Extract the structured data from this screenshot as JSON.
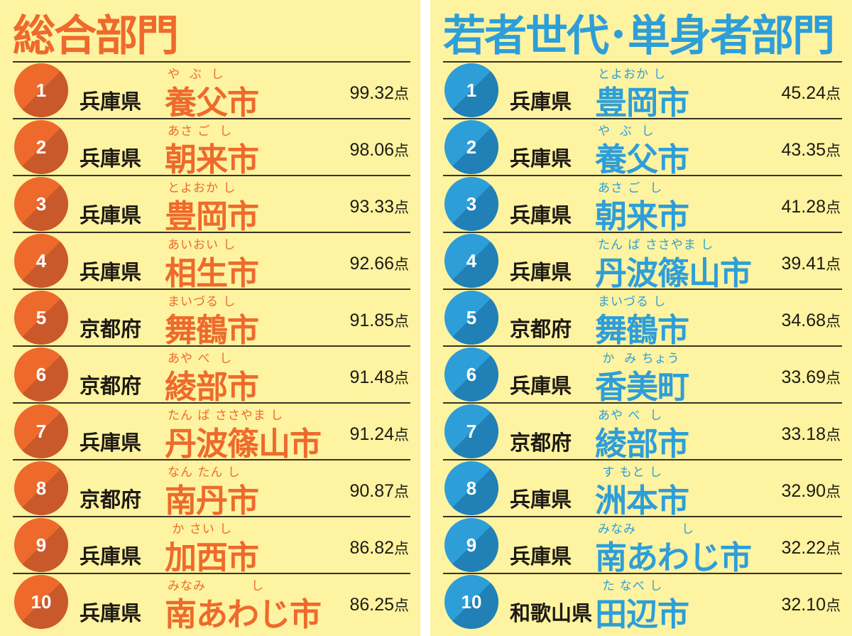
{
  "colors": {
    "background": "#fdf3a0",
    "overall_accent": "#ee6a2c",
    "overall_shade": "#c9592a",
    "young_accent": "#2e9ed8",
    "young_shade": "#2180b5"
  },
  "unit": "点",
  "panels": [
    {
      "id": "overall",
      "title": "総合部門",
      "rows": [
        {
          "rank": "1",
          "prefecture": "兵庫県",
          "reading": "や  ぶ  し",
          "city": "養父市",
          "score": "99.32"
        },
        {
          "rank": "2",
          "prefecture": "兵庫県",
          "reading": "あさ ご  し",
          "city": "朝来市",
          "score": "98.06"
        },
        {
          "rank": "3",
          "prefecture": "兵庫県",
          "reading": "とよおか し",
          "city": "豊岡市",
          "score": "93.33"
        },
        {
          "rank": "4",
          "prefecture": "兵庫県",
          "reading": "あいおい し",
          "city": "相生市",
          "score": "92.66"
        },
        {
          "rank": "5",
          "prefecture": "京都府",
          "reading": "まいづる し",
          "city": "舞鶴市",
          "score": "91.85"
        },
        {
          "rank": "6",
          "prefecture": "京都府",
          "reading": "あや べ  し",
          "city": "綾部市",
          "score": "91.48"
        },
        {
          "rank": "7",
          "prefecture": "兵庫県",
          "reading": "たん ば ささやま し",
          "city": "丹波篠山市",
          "score": "91.24"
        },
        {
          "rank": "8",
          "prefecture": "京都府",
          "reading": "なん たん し",
          "city": "南丹市",
          "score": "90.87"
        },
        {
          "rank": "9",
          "prefecture": "兵庫県",
          "reading": " か さい し",
          "city": "加西市",
          "score": "86.82"
        },
        {
          "rank": "10",
          "prefecture": "兵庫県",
          "reading": "みなみ          し",
          "city": "南あわじ市",
          "score": "86.25"
        }
      ]
    },
    {
      "id": "young",
      "title": "若者世代･単身者部門",
      "rows": [
        {
          "rank": "1",
          "prefecture": "兵庫県",
          "reading": "とよおか し",
          "city": "豊岡市",
          "score": "45.24"
        },
        {
          "rank": "2",
          "prefecture": "兵庫県",
          "reading": "や  ぶ  し",
          "city": "養父市",
          "score": "43.35"
        },
        {
          "rank": "3",
          "prefecture": "兵庫県",
          "reading": "あさ ご  し",
          "city": "朝来市",
          "score": "41.28"
        },
        {
          "rank": "4",
          "prefecture": "兵庫県",
          "reading": "たん ば ささやま し",
          "city": "丹波篠山市",
          "score": "39.41"
        },
        {
          "rank": "5",
          "prefecture": "京都府",
          "reading": "まいづる し",
          "city": "舞鶴市",
          "score": "34.68"
        },
        {
          "rank": "6",
          "prefecture": "兵庫県",
          "reading": " か  み ちょう",
          "city": "香美町",
          "score": "33.69"
        },
        {
          "rank": "7",
          "prefecture": "京都府",
          "reading": "あや べ  し",
          "city": "綾部市",
          "score": "33.18"
        },
        {
          "rank": "8",
          "prefecture": "兵庫県",
          "reading": " す もと し",
          "city": "洲本市",
          "score": "32.90"
        },
        {
          "rank": "9",
          "prefecture": "兵庫県",
          "reading": "みなみ          し",
          "city": "南あわじ市",
          "score": "32.22"
        },
        {
          "rank": "10",
          "prefecture": "和歌山県",
          "reading": " た なべ し",
          "city": "田辺市",
          "score": "32.10"
        }
      ]
    }
  ]
}
